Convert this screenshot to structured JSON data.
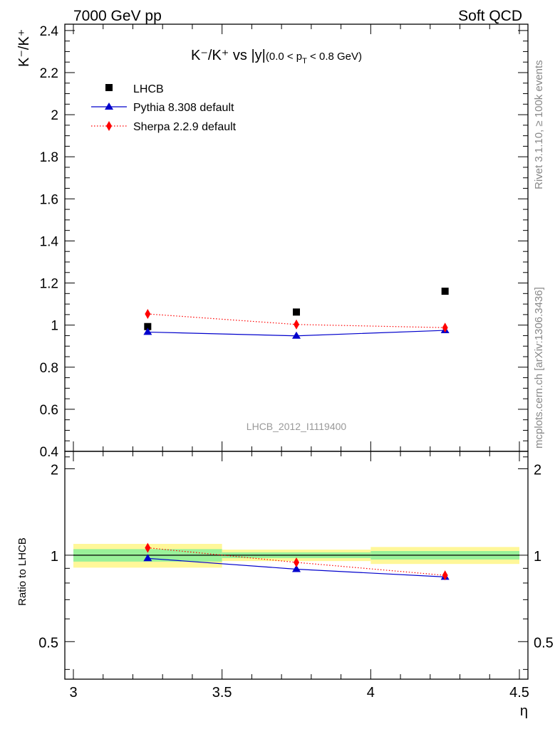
{
  "header": {
    "left": "7000 GeV pp",
    "right": "Soft QCD"
  },
  "side_labels": {
    "rivet": "Rivet 3.1.10, ≥ 100k events",
    "source": "mcplots.cern.ch [arXiv:1306.3436]"
  },
  "chart_data": [
    {
      "type": "scatter",
      "title_main": "K⁻/K⁺ vs |y|",
      "title_sub": "(0.0 < p",
      "title_sub_index": "T",
      "title_sub_tail": " < 0.8 GeV)",
      "ylabel": "K⁻/K⁺",
      "watermark": "LHCB_2012_I1119400",
      "xlim": [
        3,
        4.5
      ],
      "ylim": [
        0.4,
        2.43
      ],
      "yticks": [
        0.4,
        0.6,
        0.8,
        1,
        1.2,
        1.4,
        1.6,
        1.8,
        2,
        2.2,
        2.4
      ],
      "ytick_labels": [
        "0.4",
        "0.6",
        "0.8",
        "1",
        "1.2",
        "1.4",
        "1.6",
        "1.8",
        "2",
        "2.2",
        "2.4"
      ],
      "legend_position": "top-left",
      "series": [
        {
          "name": "LHCB",
          "marker": "square",
          "color": "#000000",
          "x": [
            3.25,
            3.75,
            4.25
          ],
          "y": [
            0.993,
            1.062,
            1.161
          ],
          "yerr": [
            0.008,
            0.01,
            0.012
          ]
        },
        {
          "name": "Pythia 8.308 default",
          "marker": "triangle",
          "color": "#0000cc",
          "line": "solid",
          "x": [
            3.25,
            3.75,
            4.25
          ],
          "y": [
            0.967,
            0.949,
            0.975
          ],
          "yerr": [
            0.01,
            0.01,
            0.01
          ]
        },
        {
          "name": "Sherpa 2.2.9 default",
          "marker": "diamond",
          "color": "#ff0000",
          "line": "dotted",
          "x": [
            3.25,
            3.75,
            4.25
          ],
          "y": [
            1.053,
            1.003,
            0.988
          ],
          "yerr": [
            0.02,
            0.02,
            0.02
          ]
        }
      ]
    },
    {
      "type": "scatter",
      "ylabel": "Ratio to LHCB",
      "xlabel": "η",
      "xlim": [
        3,
        4.5
      ],
      "ylim": [
        0.37,
        2.3
      ],
      "yscale": "log",
      "yticks": [
        0.5,
        1,
        2
      ],
      "ytick_labels": [
        "0.5",
        "1",
        "2"
      ],
      "xticks": [
        3,
        3.5,
        4,
        4.5
      ],
      "xtick_labels": [
        "3",
        "3.5",
        "4",
        "4.5"
      ],
      "bands": [
        {
          "x": [
            3.0,
            3.5
          ],
          "inner": [
            0.95,
            1.05
          ],
          "outer": [
            0.905,
            1.095
          ]
        },
        {
          "x": [
            3.5,
            4.0
          ],
          "inner": [
            0.977,
            1.023
          ],
          "outer": [
            0.954,
            1.046
          ]
        },
        {
          "x": [
            4.0,
            4.5
          ],
          "inner": [
            0.966,
            1.034
          ],
          "outer": [
            0.932,
            1.068
          ]
        }
      ],
      "band_colors": {
        "inner": "#99f199",
        "outer": "#fff799"
      },
      "series": [
        {
          "name": "Pythia 8.308 default",
          "marker": "triangle",
          "color": "#0000cc",
          "line": "solid",
          "x": [
            3.25,
            3.75,
            4.25
          ],
          "y": [
            0.975,
            0.894,
            0.84
          ]
        },
        {
          "name": "Sherpa 2.2.9 default",
          "marker": "diamond",
          "color": "#ff0000",
          "line": "dotted",
          "x": [
            3.25,
            3.75,
            4.25
          ],
          "y": [
            1.061,
            0.944,
            0.851
          ]
        }
      ]
    }
  ]
}
